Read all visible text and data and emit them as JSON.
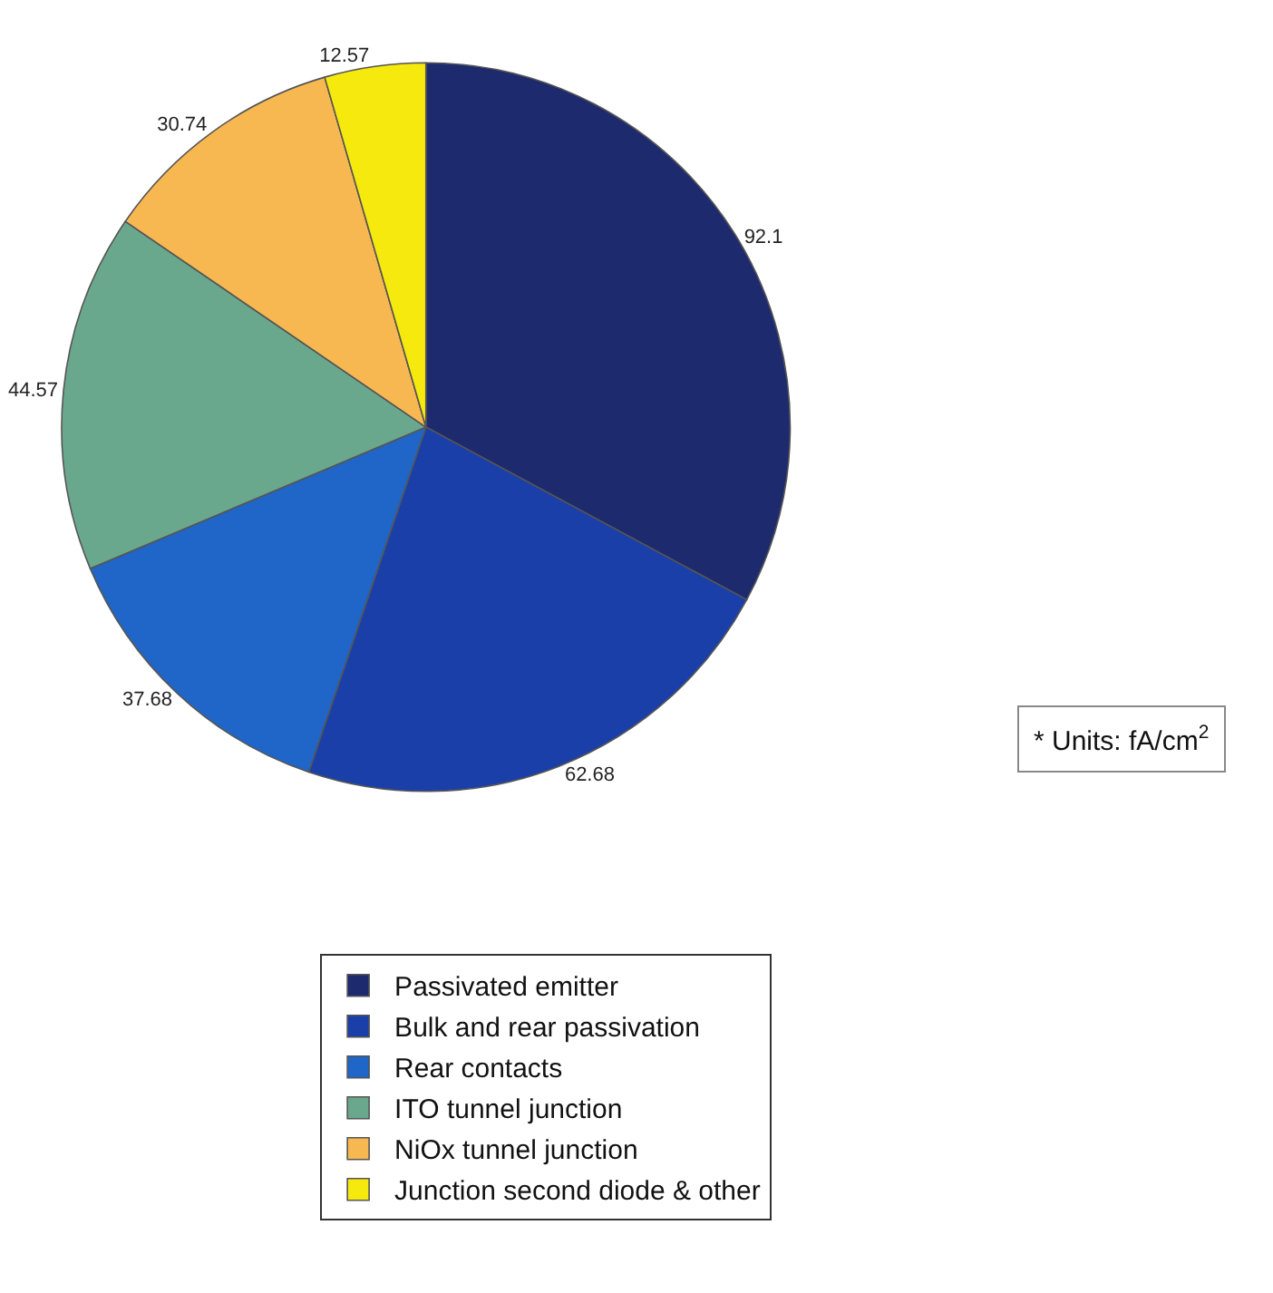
{
  "chart_data": {
    "type": "pie",
    "categories": [
      "Passivated emitter",
      "Bulk and rear passivation",
      "Rear contacts",
      "ITO tunnel junction",
      "NiOx tunnel junction",
      "Junction second diode & other"
    ],
    "values": [
      92.1,
      62.68,
      37.68,
      44.57,
      30.74,
      12.57
    ],
    "colors": [
      "#1e2a6e",
      "#1a3fa8",
      "#1f66c8",
      "#6aa88e",
      "#f7b851",
      "#f5e90d"
    ],
    "data_labels": true,
    "legend": "bottom",
    "annotations": [
      "* Units: fA/cm$^{2}$"
    ]
  }
}
